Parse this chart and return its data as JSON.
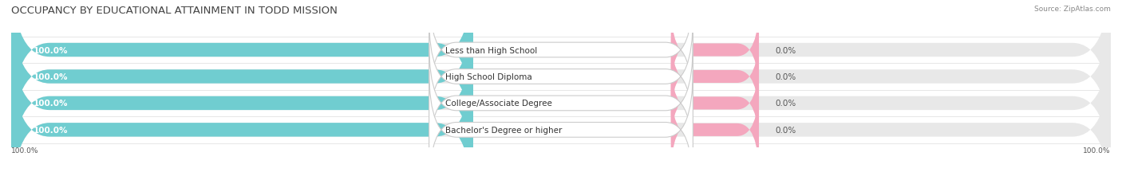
{
  "title": "OCCUPANCY BY EDUCATIONAL ATTAINMENT IN TODD MISSION",
  "source": "Source: ZipAtlas.com",
  "categories": [
    "Less than High School",
    "High School Diploma",
    "College/Associate Degree",
    "Bachelor's Degree or higher"
  ],
  "owner_values": [
    100.0,
    100.0,
    100.0,
    100.0
  ],
  "renter_values": [
    0.0,
    0.0,
    0.0,
    0.0
  ],
  "owner_color": "#70cdd0",
  "renter_color": "#f4a7be",
  "track_color": "#e8e8e8",
  "fig_width": 14.06,
  "fig_height": 2.32,
  "title_fontsize": 9.5,
  "label_fontsize": 8.0,
  "bar_height": 0.52,
  "background_color": "#ffffff",
  "bottom_left_label": "100.0%",
  "bottom_right_label": "100.0%",
  "track_total": 100.0,
  "owner_pct_display": "100.0%",
  "renter_pct_display": "0.0%"
}
